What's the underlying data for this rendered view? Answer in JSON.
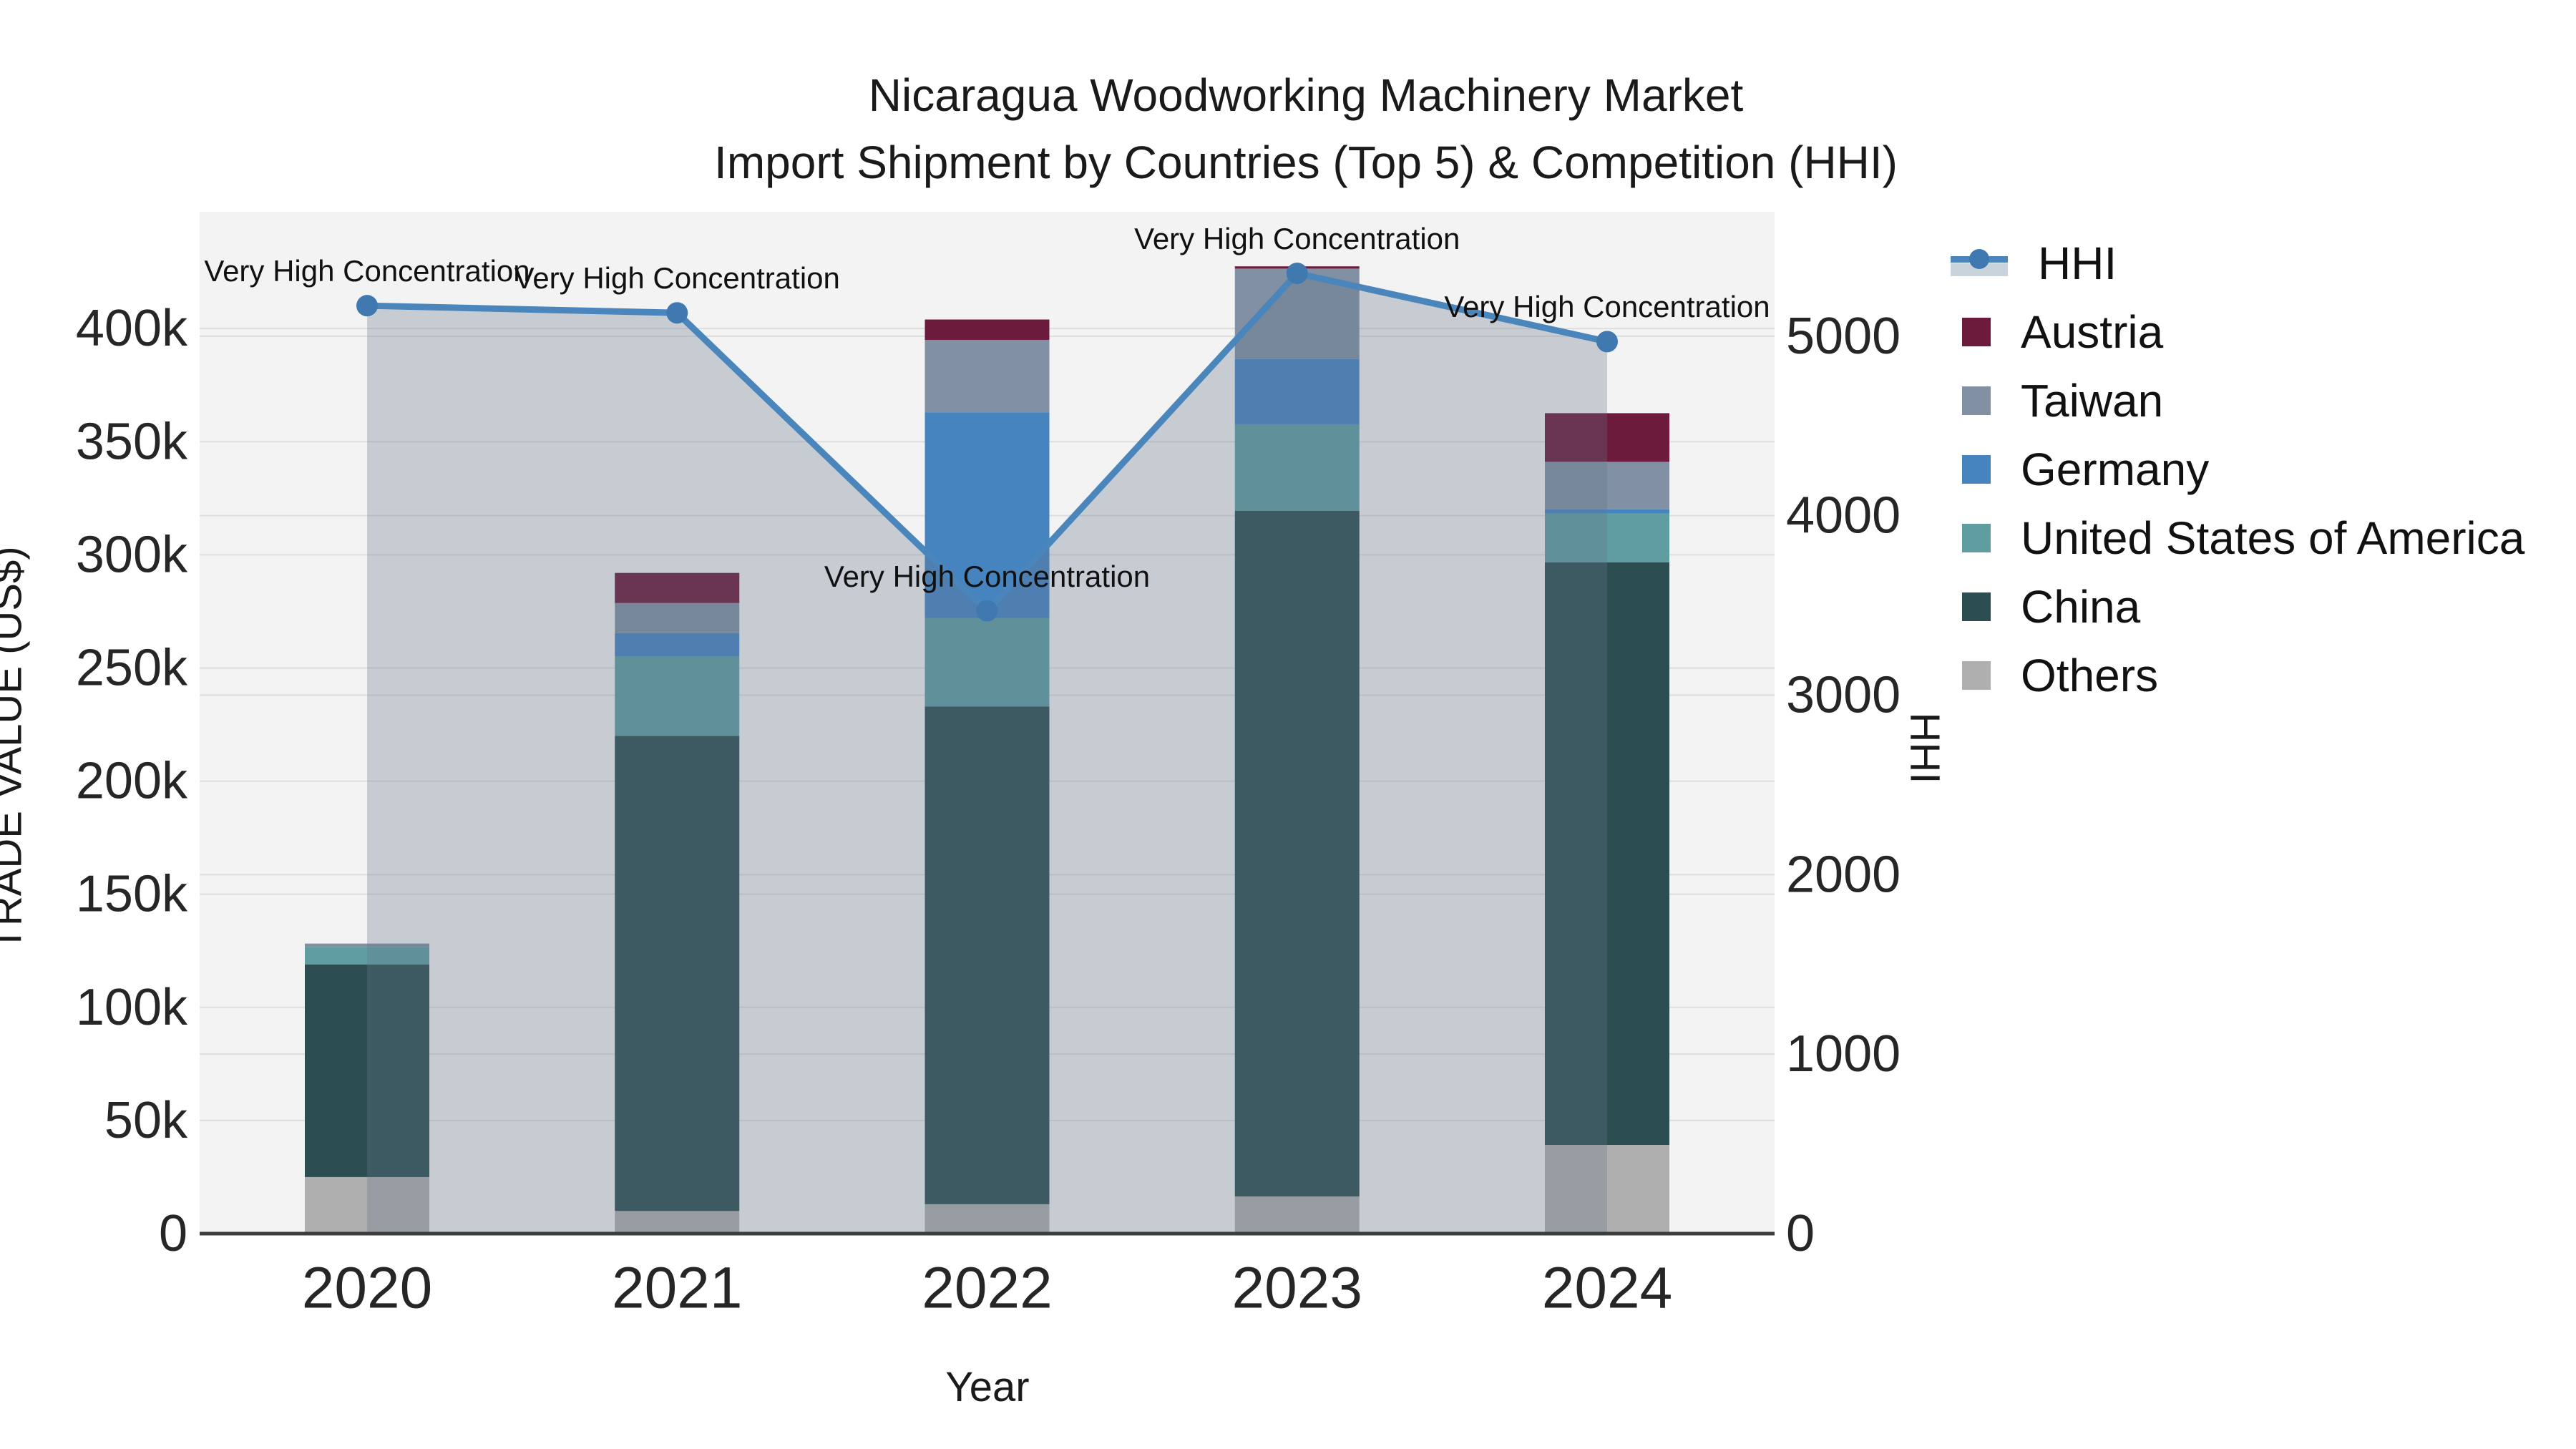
{
  "title": {
    "line1": "Nicaragua Woodworking Machinery Market",
    "line2": "Import Shipment by Countries (Top 5) & Competition (HHI)"
  },
  "chart_data": {
    "type": "stacked-bar+line",
    "categories": [
      "2020",
      "2021",
      "2022",
      "2023",
      "2024"
    ],
    "xlabel": "Year",
    "ylabel_left": "TRADE VALUE (US$)",
    "ylabel_right": "HHI",
    "ylim_left": [
      0,
      451600
    ],
    "ylim_right": [
      0,
      5693
    ],
    "yticks_left": {
      "values": [
        0,
        50000,
        100000,
        150000,
        200000,
        250000,
        300000,
        350000,
        400000
      ],
      "labels": [
        "0",
        "50k",
        "100k",
        "150k",
        "200k",
        "250k",
        "300k",
        "350k",
        "400k"
      ]
    },
    "yticks_right": {
      "values": [
        0,
        1000,
        2000,
        3000,
        4000,
        5000
      ],
      "labels": [
        "0",
        "1000",
        "2000",
        "3000",
        "4000",
        "5000"
      ]
    },
    "series": [
      {
        "name": "Others",
        "color": "#afafaf",
        "values": [
          25000,
          10000,
          13000,
          16400,
          39200
        ]
      },
      {
        "name": "China",
        "color": "#2d4e51",
        "values": [
          94000,
          210000,
          220000,
          303000,
          257500
        ]
      },
      {
        "name": "United States of America",
        "color": "#5f9da0",
        "values": [
          7600,
          35000,
          39000,
          38300,
          21500
        ]
      },
      {
        "name": "Germany",
        "color": "#4684c0",
        "values": [
          0,
          10400,
          91000,
          28800,
          1900
        ]
      },
      {
        "name": "Taiwan",
        "color": "#8191a3",
        "values": [
          1600,
          13300,
          32000,
          40000,
          21000
        ]
      },
      {
        "name": "Austria",
        "color": "#6c1b3c",
        "values": [
          0,
          13300,
          9000,
          1000,
          21500
        ]
      }
    ],
    "line_series": {
      "name": "HHI",
      "color": "#4a85bb",
      "marker_color": "#3f79b0",
      "area_fill": "rgba(100,115,140,0.30)",
      "values": [
        5170,
        5130,
        3470,
        5350,
        4970
      ]
    },
    "annotations": [
      {
        "label": "Very High Concentration",
        "category": "2020"
      },
      {
        "label": "Very High Concentration",
        "category": "2021"
      },
      {
        "label": "Very High Concentration",
        "category": "2022"
      },
      {
        "label": "Very High Concentration",
        "category": "2023"
      },
      {
        "label": "Very High Concentration",
        "category": "2024"
      }
    ],
    "legend_position": "right",
    "grid": true,
    "plot_bg": "#f3f3f3",
    "grid_color": "#dedede",
    "spine_color": "#3c3c3c"
  },
  "legend": {
    "items": [
      {
        "label": "HHI",
        "type": "line",
        "color": "#4a85bb"
      },
      {
        "label": "Austria",
        "type": "square",
        "color": "#6c1b3c"
      },
      {
        "label": "Taiwan",
        "type": "square",
        "color": "#8191a3"
      },
      {
        "label": "Germany",
        "type": "square",
        "color": "#4684c0"
      },
      {
        "label": "United States of America",
        "type": "square",
        "color": "#5f9da0"
      },
      {
        "label": "China",
        "type": "square",
        "color": "#2d4e51"
      },
      {
        "label": "Others",
        "type": "square",
        "color": "#afafaf"
      }
    ]
  }
}
